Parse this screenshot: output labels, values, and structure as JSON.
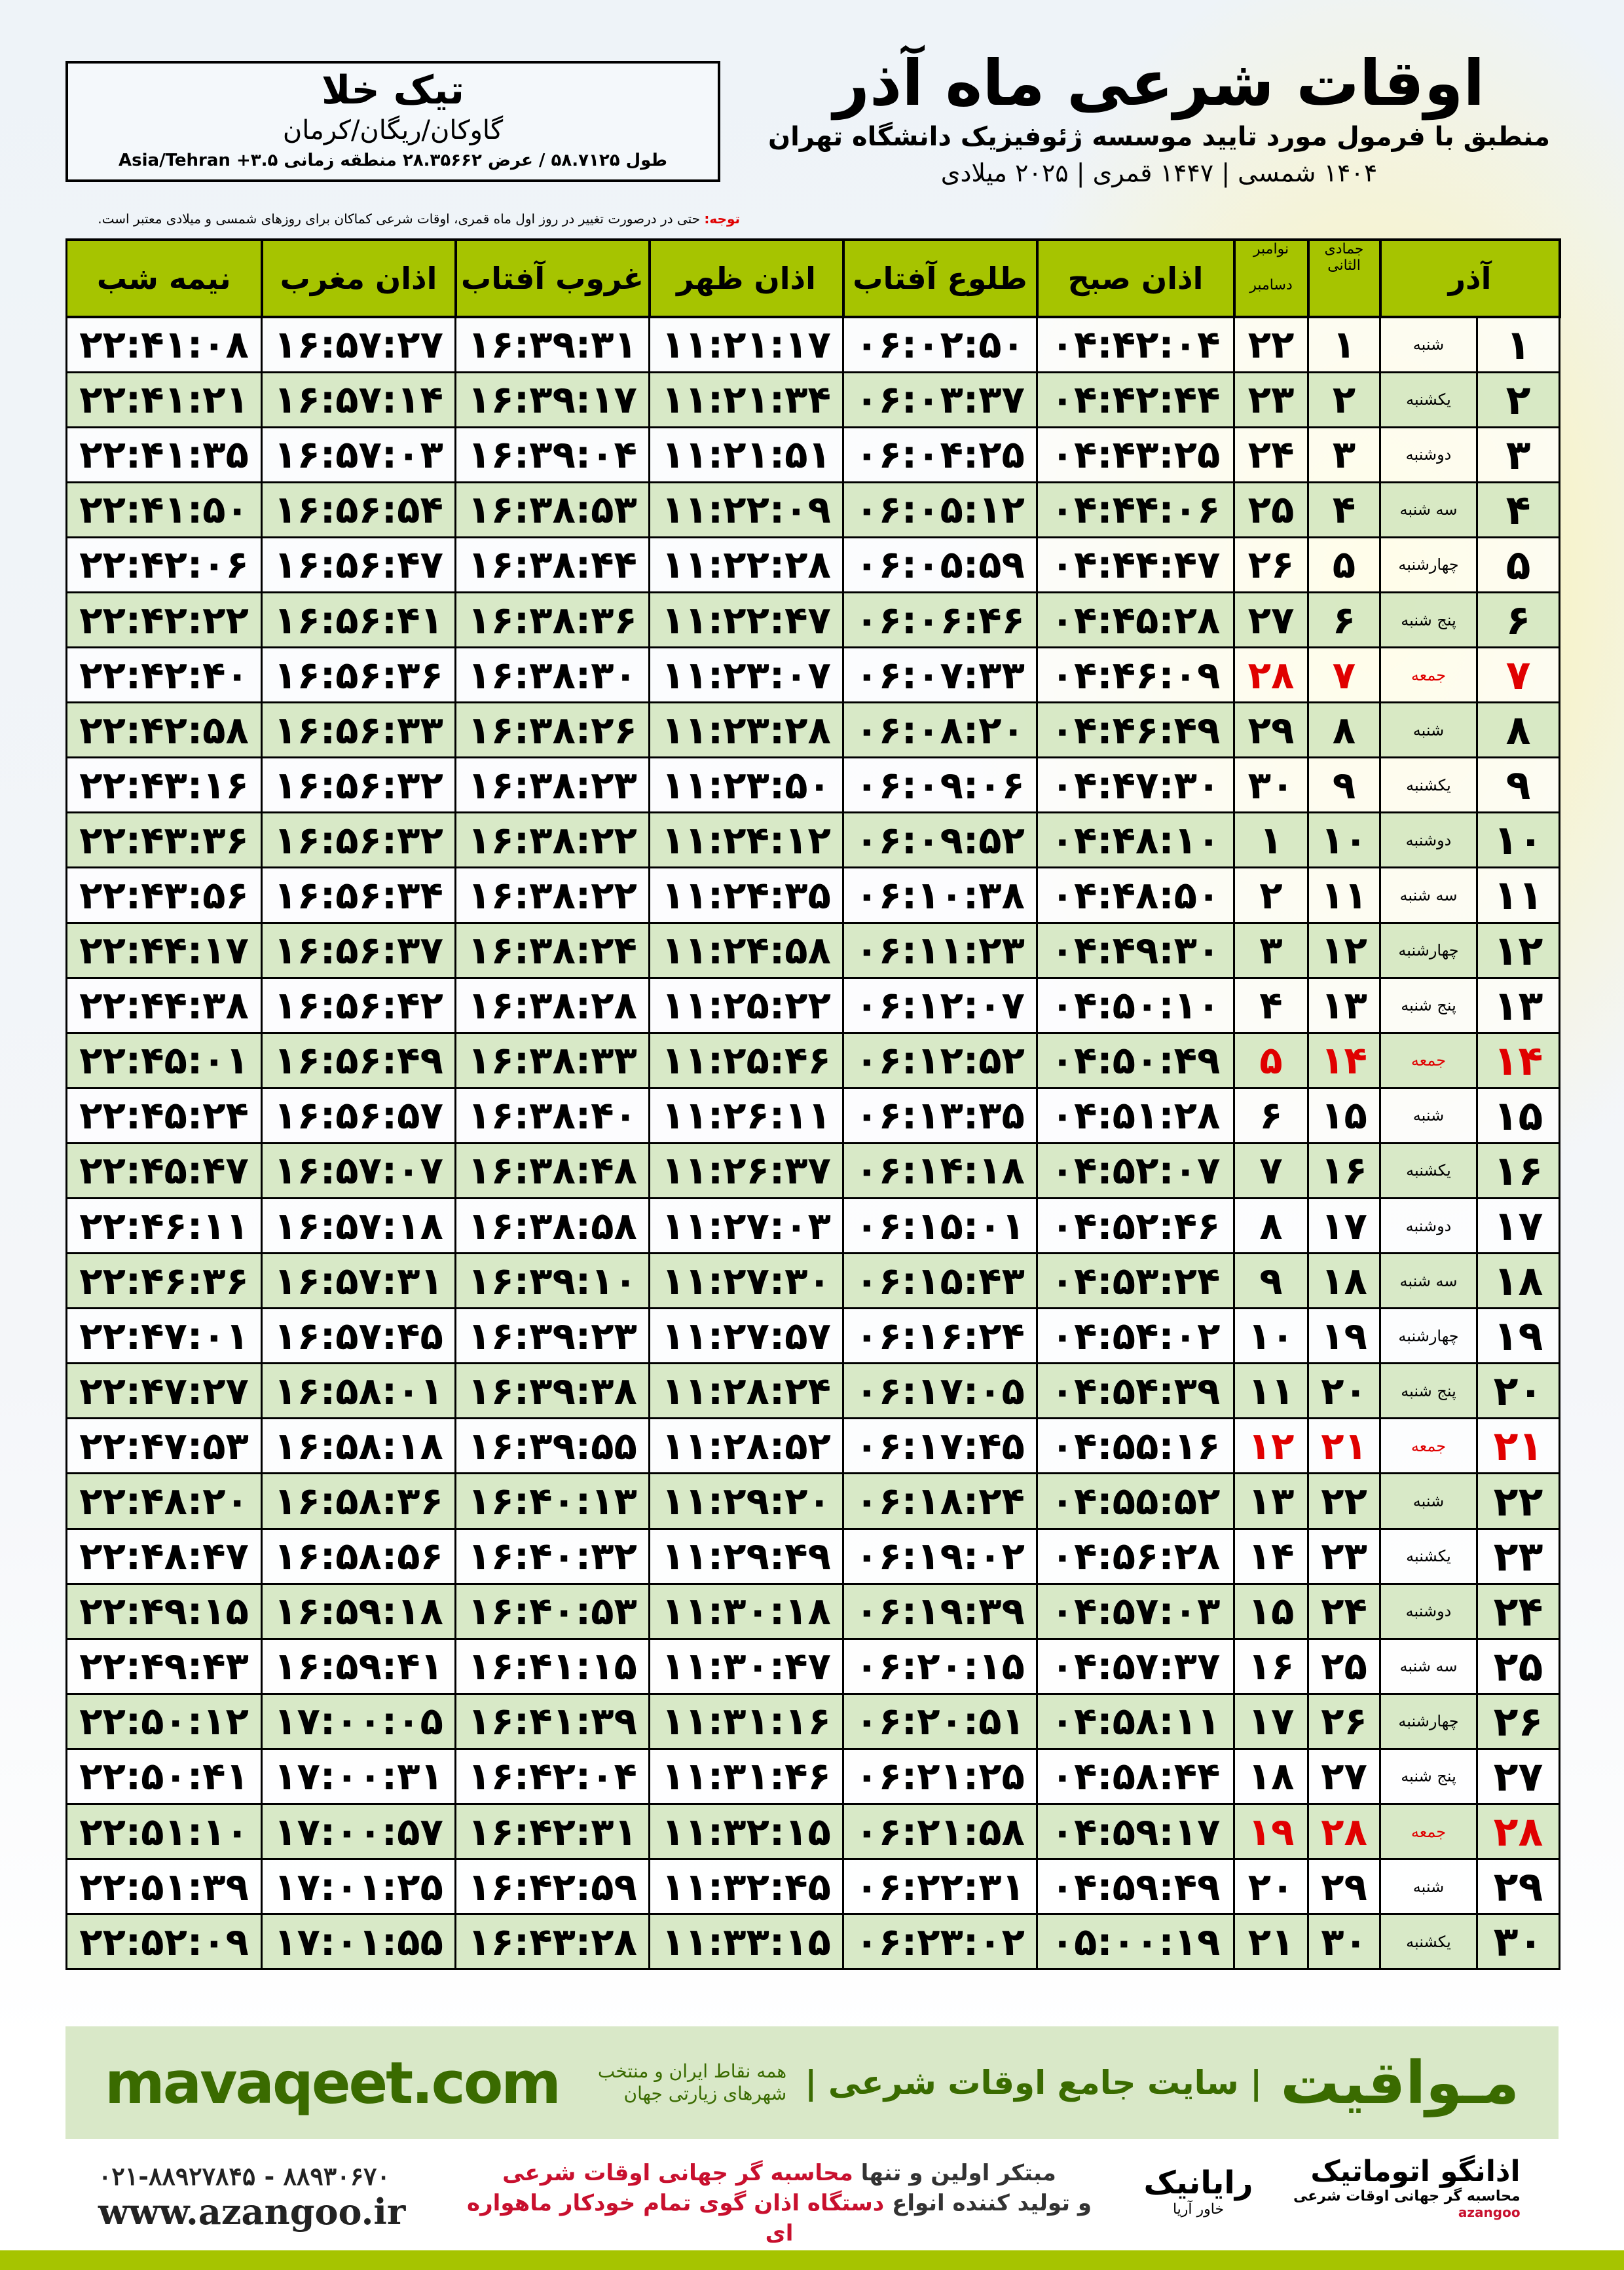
{
  "location": {
    "city": "تیک خلا",
    "region": "گاوکان/ریگان/کرمان",
    "coords": "طول ۵۸.۷۱۲۵ / عرض ۲۸.۳۵۶۶۲ منطقه زمانی ۳.۵+ Asia/Tehran"
  },
  "header": {
    "title": "اوقات شرعی ماه آذر",
    "formula": "منطبق با فرمول مورد تایید موسسه ژئوفیزیک دانشگاه تهران",
    "dates": "۱۴۰۴ شمسی | ۱۴۴۷ قمری | ۲۰۲۵ میلادی"
  },
  "note": {
    "label": "توجه:",
    "text": " حتی در درصورت تغییر در روز اول ماه قمری، اوقات شرعی کماکان برای روزهای شمسی و میلادی معتبر است."
  },
  "table": {
    "columns": {
      "azar": "آذر",
      "hijri": "جمادی الثانی",
      "greg1": "نوامبر",
      "greg2": "دسامبر",
      "sobh": "اذان صبح",
      "tolu": "طلوع آفتاب",
      "zohr": "اذان ظهر",
      "ghorub": "غروب آفتاب",
      "maghrib": "اذان مغرب",
      "nime": "نیمه شب"
    },
    "friday_color": "#e00000",
    "header_color": "#a6c400",
    "rows": [
      [
        "۱",
        "شنبه",
        "۱",
        "۲۲",
        "۰۴:۴۲:۰۴",
        "۰۶:۰۲:۵۰",
        "۱۱:۲۱:۱۷",
        "۱۶:۳۹:۳۱",
        "۱۶:۵۷:۲۷",
        "۲۲:۴۱:۰۸"
      ],
      [
        "۲",
        "یکشنبه",
        "۲",
        "۲۳",
        "۰۴:۴۲:۴۴",
        "۰۶:۰۳:۳۷",
        "۱۱:۲۱:۳۴",
        "۱۶:۳۹:۱۷",
        "۱۶:۵۷:۱۴",
        "۲۲:۴۱:۲۱"
      ],
      [
        "۳",
        "دوشنبه",
        "۳",
        "۲۴",
        "۰۴:۴۳:۲۵",
        "۰۶:۰۴:۲۵",
        "۱۱:۲۱:۵۱",
        "۱۶:۳۹:۰۴",
        "۱۶:۵۷:۰۳",
        "۲۲:۴۱:۳۵"
      ],
      [
        "۴",
        "سه شنبه",
        "۴",
        "۲۵",
        "۰۴:۴۴:۰۶",
        "۰۶:۰۵:۱۲",
        "۱۱:۲۲:۰۹",
        "۱۶:۳۸:۵۳",
        "۱۶:۵۶:۵۴",
        "۲۲:۴۱:۵۰"
      ],
      [
        "۵",
        "چهارشنبه",
        "۵",
        "۲۶",
        "۰۴:۴۴:۴۷",
        "۰۶:۰۵:۵۹",
        "۱۱:۲۲:۲۸",
        "۱۶:۳۸:۴۴",
        "۱۶:۵۶:۴۷",
        "۲۲:۴۲:۰۶"
      ],
      [
        "۶",
        "پنج شنبه",
        "۶",
        "۲۷",
        "۰۴:۴۵:۲۸",
        "۰۶:۰۶:۴۶",
        "۱۱:۲۲:۴۷",
        "۱۶:۳۸:۳۶",
        "۱۶:۵۶:۴۱",
        "۲۲:۴۲:۲۲"
      ],
      [
        "۷",
        "جمعه",
        "۷",
        "۲۸",
        "۰۴:۴۶:۰۹",
        "۰۶:۰۷:۳۳",
        "۱۱:۲۳:۰۷",
        "۱۶:۳۸:۳۰",
        "۱۶:۵۶:۳۶",
        "۲۲:۴۲:۴۰"
      ],
      [
        "۸",
        "شنبه",
        "۸",
        "۲۹",
        "۰۴:۴۶:۴۹",
        "۰۶:۰۸:۲۰",
        "۱۱:۲۳:۲۸",
        "۱۶:۳۸:۲۶",
        "۱۶:۵۶:۳۳",
        "۲۲:۴۲:۵۸"
      ],
      [
        "۹",
        "یکشنبه",
        "۹",
        "۳۰",
        "۰۴:۴۷:۳۰",
        "۰۶:۰۹:۰۶",
        "۱۱:۲۳:۵۰",
        "۱۶:۳۸:۲۳",
        "۱۶:۵۶:۳۲",
        "۲۲:۴۳:۱۶"
      ],
      [
        "۱۰",
        "دوشنبه",
        "۱۰",
        "۱",
        "۰۴:۴۸:۱۰",
        "۰۶:۰۹:۵۲",
        "۱۱:۲۴:۱۲",
        "۱۶:۳۸:۲۲",
        "۱۶:۵۶:۳۲",
        "۲۲:۴۳:۳۶"
      ],
      [
        "۱۱",
        "سه شنبه",
        "۱۱",
        "۲",
        "۰۴:۴۸:۵۰",
        "۰۶:۱۰:۳۸",
        "۱۱:۲۴:۳۵",
        "۱۶:۳۸:۲۲",
        "۱۶:۵۶:۳۴",
        "۲۲:۴۳:۵۶"
      ],
      [
        "۱۲",
        "چهارشنبه",
        "۱۲",
        "۳",
        "۰۴:۴۹:۳۰",
        "۰۶:۱۱:۲۳",
        "۱۱:۲۴:۵۸",
        "۱۶:۳۸:۲۴",
        "۱۶:۵۶:۳۷",
        "۲۲:۴۴:۱۷"
      ],
      [
        "۱۳",
        "پنج شنبه",
        "۱۳",
        "۴",
        "۰۴:۵۰:۱۰",
        "۰۶:۱۲:۰۷",
        "۱۱:۲۵:۲۲",
        "۱۶:۳۸:۲۸",
        "۱۶:۵۶:۴۲",
        "۲۲:۴۴:۳۸"
      ],
      [
        "۱۴",
        "جمعه",
        "۱۴",
        "۵",
        "۰۴:۵۰:۴۹",
        "۰۶:۱۲:۵۲",
        "۱۱:۲۵:۴۶",
        "۱۶:۳۸:۳۳",
        "۱۶:۵۶:۴۹",
        "۲۲:۴۵:۰۱"
      ],
      [
        "۱۵",
        "شنبه",
        "۱۵",
        "۶",
        "۰۴:۵۱:۲۸",
        "۰۶:۱۳:۳۵",
        "۱۱:۲۶:۱۱",
        "۱۶:۳۸:۴۰",
        "۱۶:۵۶:۵۷",
        "۲۲:۴۵:۲۴"
      ],
      [
        "۱۶",
        "یکشنبه",
        "۱۶",
        "۷",
        "۰۴:۵۲:۰۷",
        "۰۶:۱۴:۱۸",
        "۱۱:۲۶:۳۷",
        "۱۶:۳۸:۴۸",
        "۱۶:۵۷:۰۷",
        "۲۲:۴۵:۴۷"
      ],
      [
        "۱۷",
        "دوشنبه",
        "۱۷",
        "۸",
        "۰۴:۵۲:۴۶",
        "۰۶:۱۵:۰۱",
        "۱۱:۲۷:۰۳",
        "۱۶:۳۸:۵۸",
        "۱۶:۵۷:۱۸",
        "۲۲:۴۶:۱۱"
      ],
      [
        "۱۸",
        "سه شنبه",
        "۱۸",
        "۹",
        "۰۴:۵۳:۲۴",
        "۰۶:۱۵:۴۳",
        "۱۱:۲۷:۳۰",
        "۱۶:۳۹:۱۰",
        "۱۶:۵۷:۳۱",
        "۲۲:۴۶:۳۶"
      ],
      [
        "۱۹",
        "چهارشنبه",
        "۱۹",
        "۱۰",
        "۰۴:۵۴:۰۲",
        "۰۶:۱۶:۲۴",
        "۱۱:۲۷:۵۷",
        "۱۶:۳۹:۲۳",
        "۱۶:۵۷:۴۵",
        "۲۲:۴۷:۰۱"
      ],
      [
        "۲۰",
        "پنج شنبه",
        "۲۰",
        "۱۱",
        "۰۴:۵۴:۳۹",
        "۰۶:۱۷:۰۵",
        "۱۱:۲۸:۲۴",
        "۱۶:۳۹:۳۸",
        "۱۶:۵۸:۰۱",
        "۲۲:۴۷:۲۷"
      ],
      [
        "۲۱",
        "جمعه",
        "۲۱",
        "۱۲",
        "۰۴:۵۵:۱۶",
        "۰۶:۱۷:۴۵",
        "۱۱:۲۸:۵۲",
        "۱۶:۳۹:۵۵",
        "۱۶:۵۸:۱۸",
        "۲۲:۴۷:۵۳"
      ],
      [
        "۲۲",
        "شنبه",
        "۲۲",
        "۱۳",
        "۰۴:۵۵:۵۲",
        "۰۶:۱۸:۲۴",
        "۱۱:۲۹:۲۰",
        "۱۶:۴۰:۱۳",
        "۱۶:۵۸:۳۶",
        "۲۲:۴۸:۲۰"
      ],
      [
        "۲۳",
        "یکشنبه",
        "۲۳",
        "۱۴",
        "۰۴:۵۶:۲۸",
        "۰۶:۱۹:۰۲",
        "۱۱:۲۹:۴۹",
        "۱۶:۴۰:۳۲",
        "۱۶:۵۸:۵۶",
        "۲۲:۴۸:۴۷"
      ],
      [
        "۲۴",
        "دوشنبه",
        "۲۴",
        "۱۵",
        "۰۴:۵۷:۰۳",
        "۰۶:۱۹:۳۹",
        "۱۱:۳۰:۱۸",
        "۱۶:۴۰:۵۳",
        "۱۶:۵۹:۱۸",
        "۲۲:۴۹:۱۵"
      ],
      [
        "۲۵",
        "سه شنبه",
        "۲۵",
        "۱۶",
        "۰۴:۵۷:۳۷",
        "۰۶:۲۰:۱۵",
        "۱۱:۳۰:۴۷",
        "۱۶:۴۱:۱۵",
        "۱۶:۵۹:۴۱",
        "۲۲:۴۹:۴۳"
      ],
      [
        "۲۶",
        "چهارشنبه",
        "۲۶",
        "۱۷",
        "۰۴:۵۸:۱۱",
        "۰۶:۲۰:۵۱",
        "۱۱:۳۱:۱۶",
        "۱۶:۴۱:۳۹",
        "۱۷:۰۰:۰۵",
        "۲۲:۵۰:۱۲"
      ],
      [
        "۲۷",
        "پنج شنبه",
        "۲۷",
        "۱۸",
        "۰۴:۵۸:۴۴",
        "۰۶:۲۱:۲۵",
        "۱۱:۳۱:۴۶",
        "۱۶:۴۲:۰۴",
        "۱۷:۰۰:۳۱",
        "۲۲:۵۰:۴۱"
      ],
      [
        "۲۸",
        "جمعه",
        "۲۸",
        "۱۹",
        "۰۴:۵۹:۱۷",
        "۰۶:۲۱:۵۸",
        "۱۱:۳۲:۱۵",
        "۱۶:۴۲:۳۱",
        "۱۷:۰۰:۵۷",
        "۲۲:۵۱:۱۰"
      ],
      [
        "۲۹",
        "شنبه",
        "۲۹",
        "۲۰",
        "۰۴:۵۹:۴۹",
        "۰۶:۲۲:۳۱",
        "۱۱:۳۲:۴۵",
        "۱۶:۴۲:۵۹",
        "۱۷:۰۱:۲۵",
        "۲۲:۵۱:۳۹"
      ],
      [
        "۳۰",
        "یکشنبه",
        "۳۰",
        "۲۱",
        "۰۵:۰۰:۱۹",
        "۰۶:۲۳:۰۲",
        "۱۱:۳۳:۱۵",
        "۱۶:۴۳:۲۸",
        "۱۷:۰۱:۵۵",
        "۲۲:۵۲:۰۹"
      ]
    ]
  },
  "footer": {
    "brand": "مـواقیت",
    "slogan": "| سایت جامع اوقات شرعی |",
    "sub": "همه نقاط ایران و منتخب شهرهای زیارتی جهان",
    "site": "mavaqeet.com"
  },
  "ad": {
    "l1a": "مبتکر اولین و تنها ",
    "l1b": "محاسبه گر جهانی اوقات شرعی",
    "l2a": "و تولید کننده انواع ",
    "l2b": "دستگاه اذان گوی تمام خودکار ماهواره ای",
    "phones": "۰۲۱-۸۸۹۲۷۸۴۵ - ۸۸۹۳۰۶۷۰",
    "web": "www.azangoo.ir",
    "logo1": "رایانیک",
    "logo1sub": "خاور آریا",
    "logo2": "اذانگو اتوماتیک",
    "logo2sub": "محاسبه گر جهانی اوقات شرعی",
    "logo2en": "azangoo"
  }
}
